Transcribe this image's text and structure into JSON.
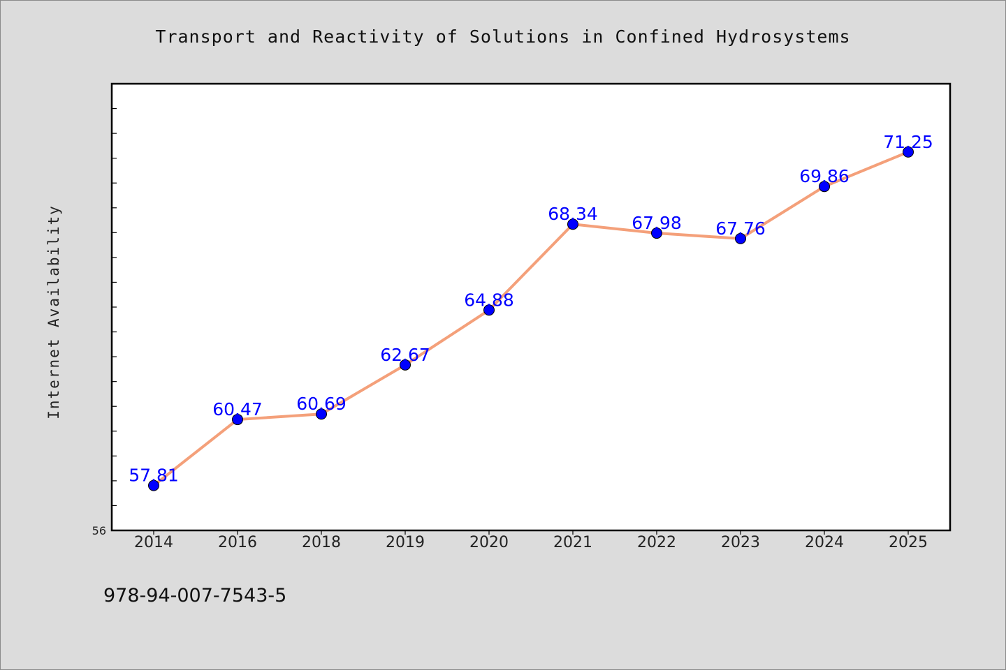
{
  "isbn": "978-94-007-7543-5",
  "chart_data": {
    "type": "line",
    "title": "Transport and Reactivity of Solutions in Confined Hydrosystems",
    "xlabel": "",
    "ylabel": "Internet Availability",
    "categories": [
      "2014",
      "2016",
      "2018",
      "2019",
      "2020",
      "2021",
      "2022",
      "2023",
      "2024",
      "2025"
    ],
    "values": [
      57.81,
      60.47,
      60.69,
      62.67,
      64.88,
      68.34,
      67.98,
      67.76,
      69.86,
      71.25
    ],
    "data_labels": [
      "57.81",
      "60.47",
      "60.69",
      "62.67",
      "64.88",
      "68.34",
      "67.98",
      "67.76",
      "69.86",
      "71.25"
    ],
    "ylim": [
      56,
      74
    ],
    "y_tick_labels": [
      "56"
    ],
    "grid": false,
    "legend": "none",
    "colors": {
      "line": "#f4a07a",
      "marker": "#0000ff",
      "marker_edge": "#000000",
      "data_label": "#0000ff"
    }
  }
}
